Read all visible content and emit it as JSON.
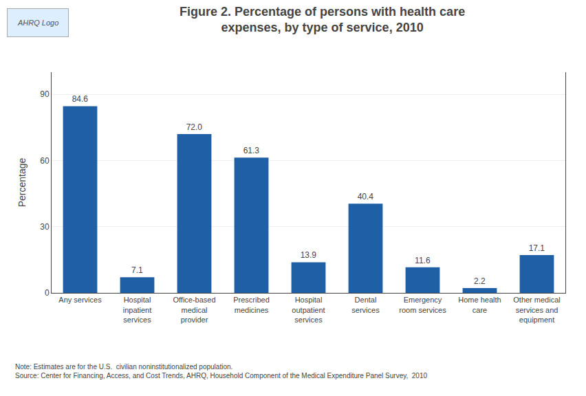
{
  "chart_data": {
    "type": "bar",
    "title": "Figure 2. Percentage of persons with health care\nexpenses, by type of service, 2010",
    "categories": [
      "Any services",
      "Hospital\ninpatient\nservices",
      "Office-based\nmedical\nprovider",
      "Prescribed\nmedicines",
      "Hospital\noutpatient\nservices",
      "Dental\nservices",
      "Emergency\nroom services",
      "Home health\ncare",
      "Other medical\nservices and\nequipment"
    ],
    "values": [
      84.6,
      7.1,
      72.0,
      61.3,
      13.9,
      40.4,
      11.6,
      2.2,
      17.1
    ],
    "value_labels": [
      "84.6",
      "7.1",
      "72.0",
      "61.3",
      "13.9",
      "40.4",
      "11.6",
      "2.2",
      "17.1"
    ],
    "data_labels": true,
    "color": "#1F5FA6",
    "ylabel": "Percentage",
    "ylim": [
      0,
      100
    ],
    "yticks": [
      0,
      30,
      60,
      90
    ],
    "grid": true,
    "annotations": [
      "AHRQ Logo",
      "Note: Estimates are for the U.S.  civilian noninstitutionalized population.\nSource: Center for Financing, Access, and Cost Trends, AHRQ, Household Component of the Medical Expenditure Panel Survey,  2010"
    ]
  }
}
